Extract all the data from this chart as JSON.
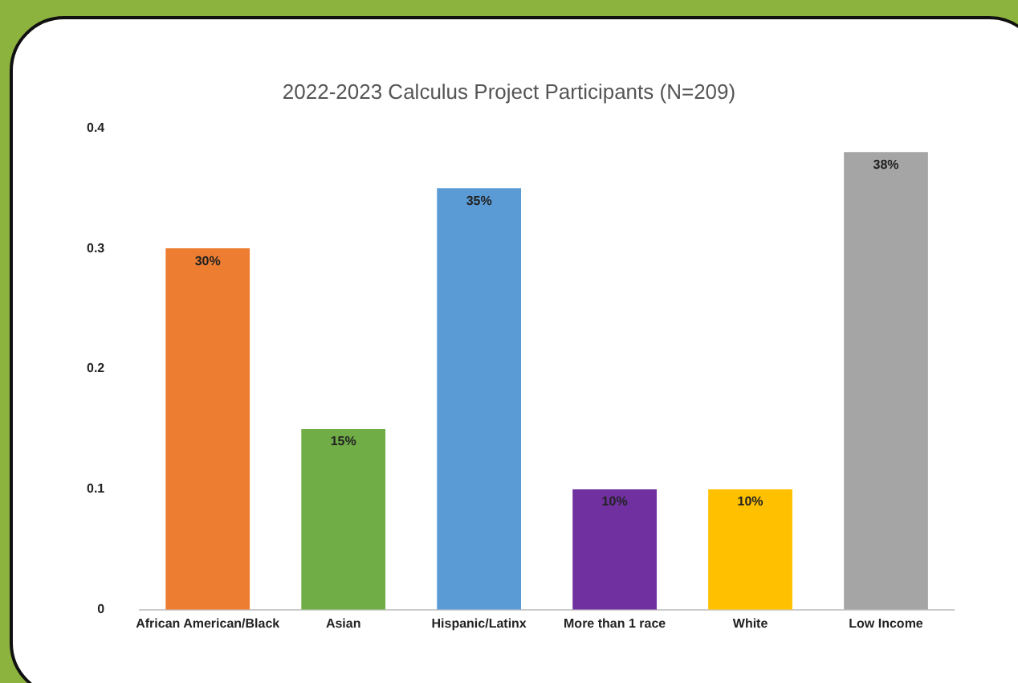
{
  "chart_data": {
    "type": "bar",
    "title": "2022-2023 Calculus Project Participants (N=209)",
    "categories": [
      "African American/Black",
      "Asian",
      "Hispanic/Latinx",
      "More than 1 race",
      "White",
      "Low Income"
    ],
    "values": [
      0.3,
      0.15,
      0.35,
      0.1,
      0.1,
      0.38
    ],
    "colors": [
      "#ed7d31",
      "#70ad47",
      "#5b9bd5",
      "#7030a0",
      "#ffc000",
      "#a5a5a5"
    ],
    "value_labels": [
      "30%",
      "15%",
      "35%",
      "10%",
      "10%",
      "38%"
    ],
    "ylim": [
      0,
      0.4
    ],
    "yticks": [
      0,
      0.1,
      0.2,
      0.3,
      0.4
    ],
    "grid": false,
    "legend": false
  }
}
